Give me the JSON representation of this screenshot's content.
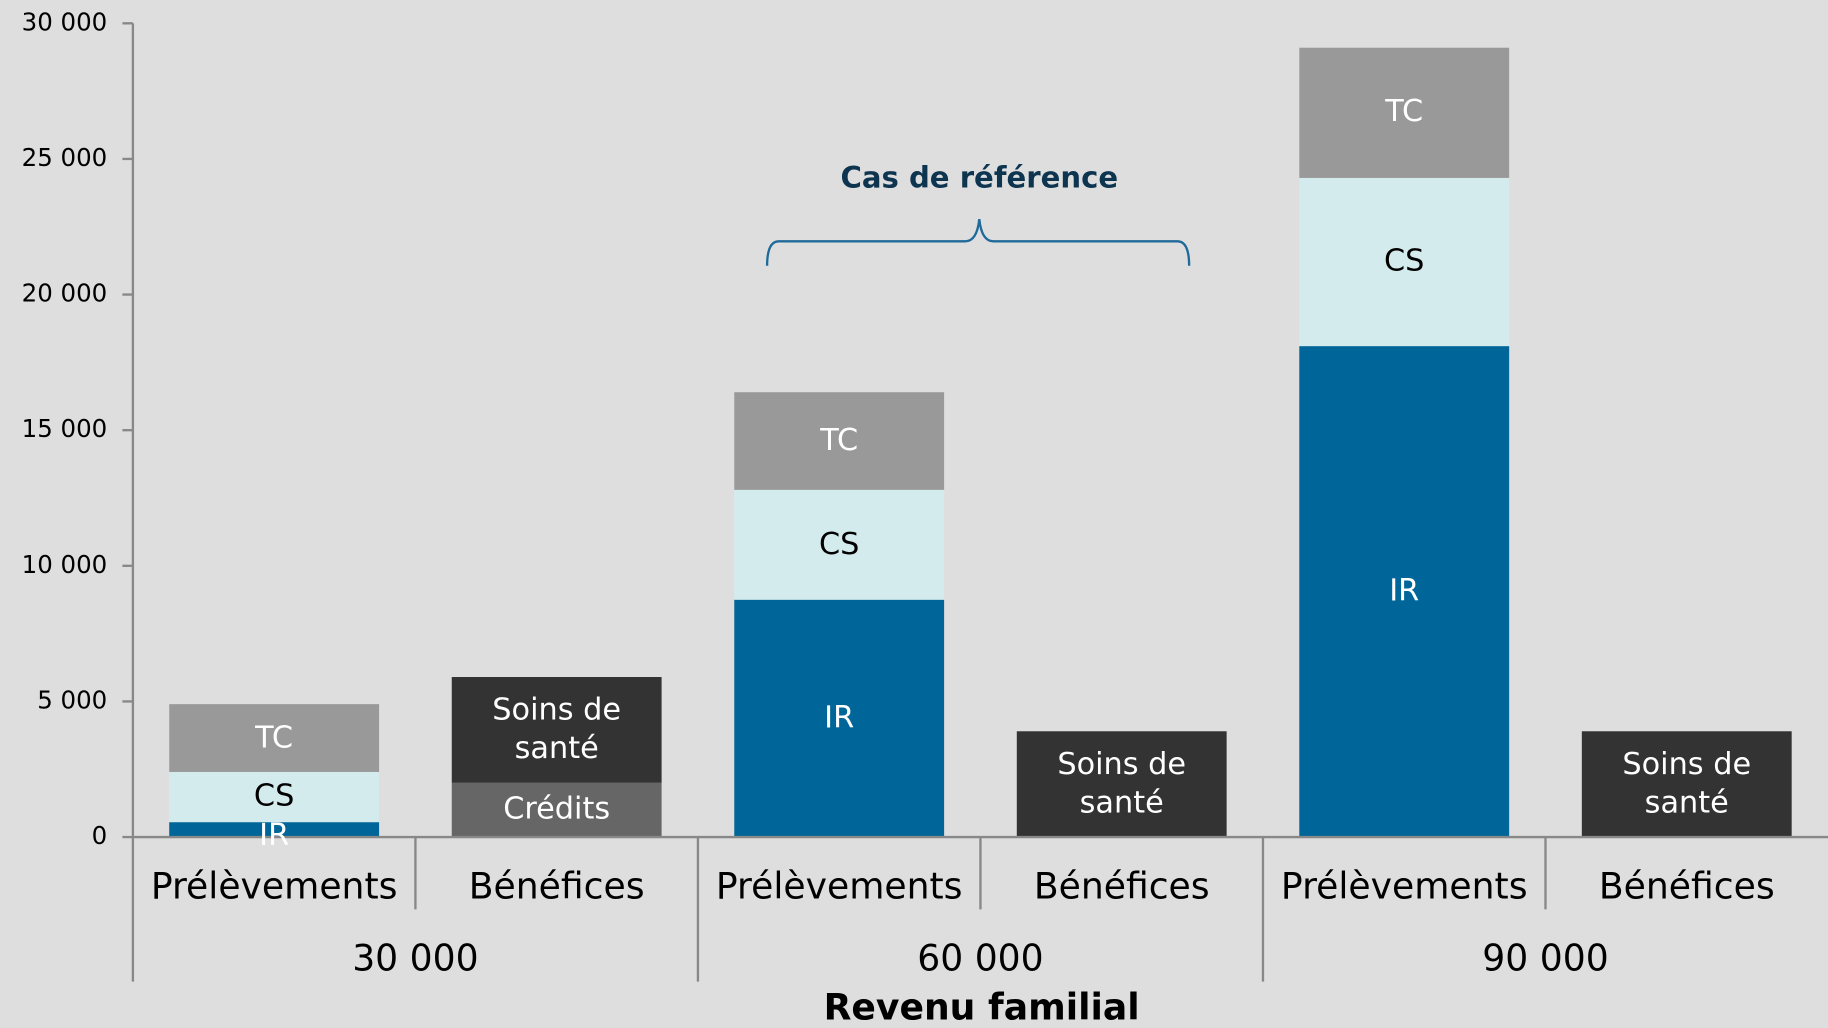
{
  "chart_data": {
    "type": "stacked_bar",
    "categories": [
      "Prélèvements",
      "Bénéfices",
      "Prélèvements",
      "Bénéfices",
      "Prélèvements",
      "Bénéfices"
    ],
    "groups": [
      "30 000",
      "60 000",
      "90 000"
    ],
    "x_label": "Revenu familial",
    "annotation": "Cas de référence",
    "series": [
      {
        "name": "IR",
        "color": "#006699",
        "label_color": "#ffffff",
        "values": [
          550,
          null,
          8750,
          null,
          18100,
          null
        ]
      },
      {
        "name": "CS",
        "color": "#d4ebee",
        "label_color": "#000000",
        "values": [
          1850,
          null,
          4050,
          null,
          6200,
          null
        ]
      },
      {
        "name": "TC",
        "color": "#999999",
        "label_color": "#ffffff",
        "values": [
          2500,
          null,
          3600,
          null,
          4800,
          null
        ]
      },
      {
        "name": "Crédits",
        "color": "#666666",
        "label_color": "#ffffff",
        "values": [
          null,
          2000,
          null,
          null,
          null,
          null
        ]
      },
      {
        "name": "Soins de santé",
        "color": "#333333",
        "label_color": "#ffffff",
        "values": [
          null,
          3900,
          null,
          3900,
          null,
          3900
        ]
      }
    ],
    "ylim": [
      0,
      30000
    ],
    "yticks": [
      0,
      {
        "value": 5000,
        "label": "5 000"
      },
      {
        "value": 10000,
        "label": "10 000"
      },
      {
        "value": 15000,
        "label": "15 000"
      },
      {
        "value": 20000,
        "label": "20 000"
      },
      {
        "value": 25000,
        "label": "25 000"
      },
      {
        "value": 30000,
        "label": "30 000"
      }
    ],
    "grid": false
  }
}
